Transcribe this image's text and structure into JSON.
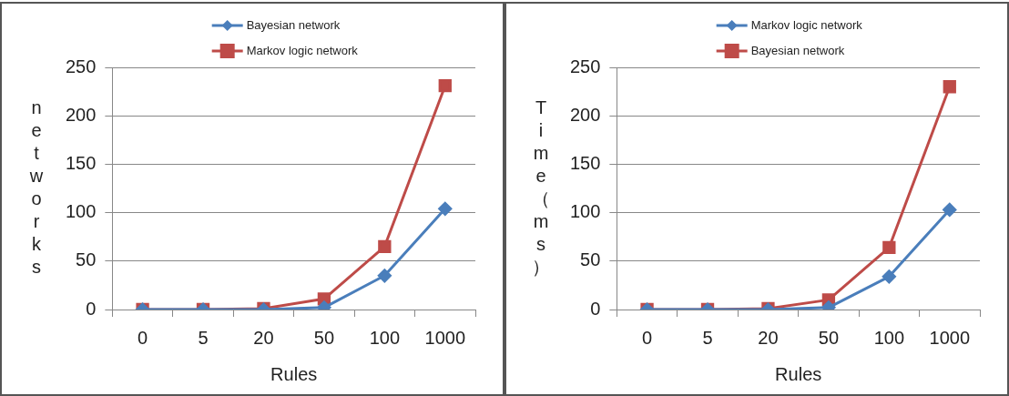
{
  "chart_data": [
    {
      "type": "line",
      "categories": [
        "0",
        "5",
        "20",
        "50",
        "100",
        "1000"
      ],
      "xlabel": "Rules",
      "ylabel": "networks",
      "ylim": [
        0,
        250
      ],
      "yticks": [
        0,
        50,
        100,
        150,
        200,
        250
      ],
      "grid": "y",
      "legend": "top",
      "series": [
        {
          "name": "Bayesian network",
          "color": "#4a7ebb",
          "marker": "diamond",
          "values": [
            0,
            0,
            0,
            2,
            35,
            104
          ]
        },
        {
          "name": "Markov logic network",
          "color": "#be4b48",
          "marker": "square",
          "values": [
            0,
            0,
            1,
            11,
            65,
            231
          ]
        }
      ]
    },
    {
      "type": "line",
      "categories": [
        "0",
        "5",
        "20",
        "50",
        "100",
        "1000"
      ],
      "xlabel": "Rules",
      "ylabel": "Time（ms）",
      "ylim": [
        0,
        250
      ],
      "yticks": [
        0,
        50,
        100,
        150,
        200,
        250
      ],
      "grid": "y",
      "legend": "top",
      "series": [
        {
          "name": "Markov logic network",
          "color": "#4a7ebb",
          "marker": "diamond",
          "values": [
            0,
            0,
            0,
            2,
            34,
            103
          ]
        },
        {
          "name": "Bayesian network",
          "color": "#be4b48",
          "marker": "square",
          "values": [
            0,
            0,
            1,
            10,
            64,
            230
          ]
        }
      ]
    }
  ]
}
